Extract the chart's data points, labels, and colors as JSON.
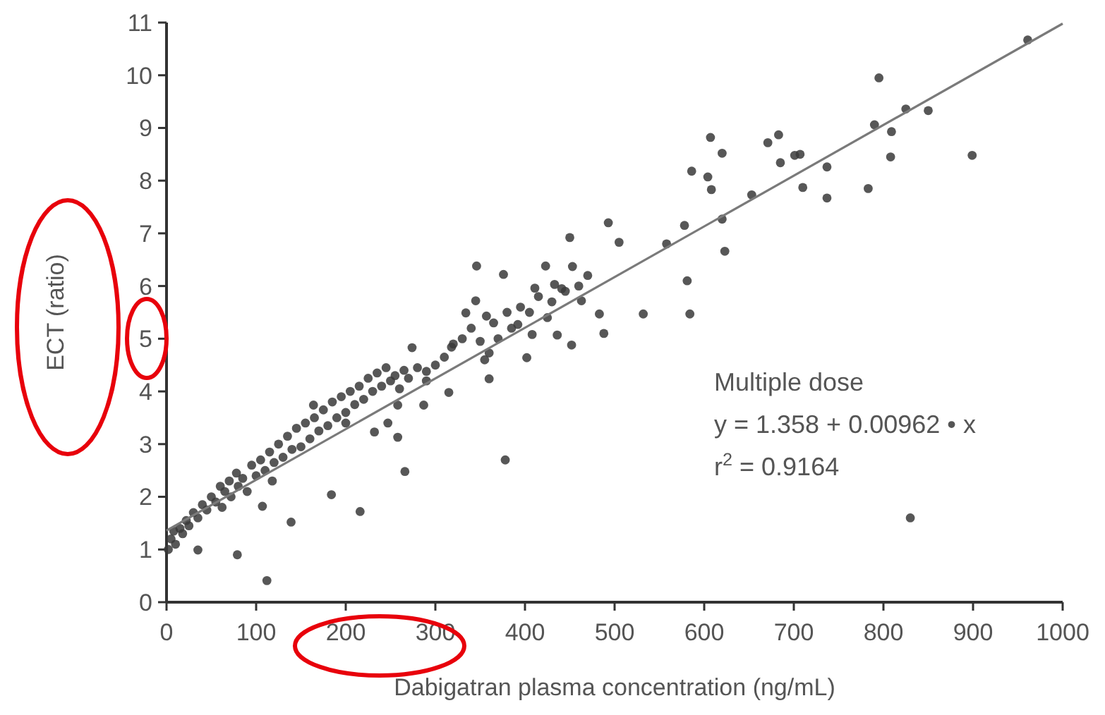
{
  "chart_data": {
    "type": "scatter",
    "xlabel": "Dabigatran plasma concentration (ng/mL)",
    "ylabel": "ECT (ratio)",
    "xlim": [
      0,
      1000
    ],
    "ylim": [
      0,
      11
    ],
    "xticks": [
      0,
      100,
      200,
      300,
      400,
      500,
      600,
      700,
      800,
      900,
      1000
    ],
    "yticks": [
      0,
      1,
      2,
      3,
      4,
      5,
      6,
      7,
      8,
      9,
      10,
      11
    ],
    "annotations": [
      "Multiple dose",
      "y = 1.358 + 0.00962 • x",
      "r$^{2}$ = 0.9164"
    ],
    "series": [
      {
        "color": "#3a3a3a",
        "marker": "circle",
        "x": [
          961,
          795,
          825,
          850,
          790,
          809,
          808,
          899,
          783,
          737,
          737,
          710,
          701,
          707,
          685,
          683,
          671,
          653,
          620,
          607,
          608,
          604,
          586,
          620,
          623,
          578,
          558,
          581,
          584,
          532,
          505,
          493,
          483,
          488,
          463,
          453,
          450,
          452,
          830,
          112,
          79,
          35,
          139,
          184,
          216,
          266,
          378,
          107,
          232,
          258,
          287,
          315,
          360,
          346,
          376,
          423,
          402,
          436,
          408,
          392,
          411,
          433,
          441,
          274,
          164,
          345,
          357,
          334,
          360,
          318,
          290,
          258,
          247,
          200,
          2,
          5,
          8,
          10,
          15,
          18,
          22,
          25,
          30,
          35,
          40,
          45,
          50,
          55,
          60,
          62,
          65,
          70,
          72,
          78,
          80,
          85,
          90,
          95,
          100,
          105,
          110,
          115,
          118,
          120,
          125,
          130,
          135,
          140,
          145,
          150,
          155,
          160,
          165,
          170,
          175,
          180,
          185,
          190,
          195,
          200,
          205,
          210,
          215,
          220,
          225,
          230,
          235,
          240,
          245,
          250,
          255,
          260,
          265,
          270,
          280,
          290,
          300,
          310,
          320,
          330,
          340,
          350,
          355,
          365,
          370,
          380,
          385,
          395,
          405,
          415,
          425,
          430,
          445,
          460,
          470
        ],
        "values": [
          10.67,
          9.95,
          9.36,
          9.33,
          9.06,
          8.93,
          8.45,
          8.48,
          7.85,
          8.26,
          7.67,
          7.87,
          8.48,
          8.5,
          8.34,
          8.87,
          8.72,
          7.73,
          8.52,
          8.82,
          7.83,
          8.07,
          8.18,
          7.27,
          6.66,
          7.15,
          6.8,
          6.1,
          5.47,
          5.47,
          6.83,
          7.2,
          5.47,
          5.1,
          5.72,
          6.37,
          6.92,
          4.88,
          1.6,
          0.41,
          0.9,
          0.99,
          1.52,
          2.04,
          1.72,
          2.48,
          2.7,
          1.82,
          3.23,
          3.13,
          3.74,
          3.98,
          4.24,
          6.38,
          6.22,
          6.38,
          4.64,
          5.07,
          5.08,
          5.27,
          5.96,
          6.03,
          5.95,
          4.83,
          3.74,
          5.72,
          5.43,
          5.49,
          4.73,
          4.84,
          4.38,
          3.74,
          3.4,
          3.4,
          1.0,
          1.2,
          1.35,
          1.1,
          1.4,
          1.3,
          1.55,
          1.45,
          1.7,
          1.6,
          1.85,
          1.75,
          2.0,
          1.9,
          2.2,
          1.8,
          2.1,
          2.3,
          2.0,
          2.45,
          2.2,
          2.35,
          2.1,
          2.6,
          2.4,
          2.7,
          2.5,
          2.85,
          2.3,
          2.65,
          3.0,
          2.75,
          3.15,
          2.9,
          3.3,
          2.95,
          3.4,
          3.1,
          3.5,
          3.25,
          3.65,
          3.35,
          3.8,
          3.5,
          3.9,
          3.6,
          4.0,
          3.75,
          4.1,
          3.85,
          4.25,
          4.0,
          4.35,
          4.1,
          4.45,
          4.2,
          4.3,
          4.05,
          4.4,
          4.25,
          4.45,
          4.2,
          4.5,
          4.65,
          4.9,
          5.0,
          5.2,
          4.95,
          4.6,
          5.3,
          5.0,
          5.5,
          5.2,
          5.6,
          5.5,
          5.8,
          5.4,
          5.7,
          5.9,
          6.0,
          6.2
        ]
      },
      {
        "type": "line",
        "color": "#7a7a7a",
        "x": [
          0,
          1000
        ],
        "values": [
          1.36,
          10.98
        ]
      }
    ]
  }
}
